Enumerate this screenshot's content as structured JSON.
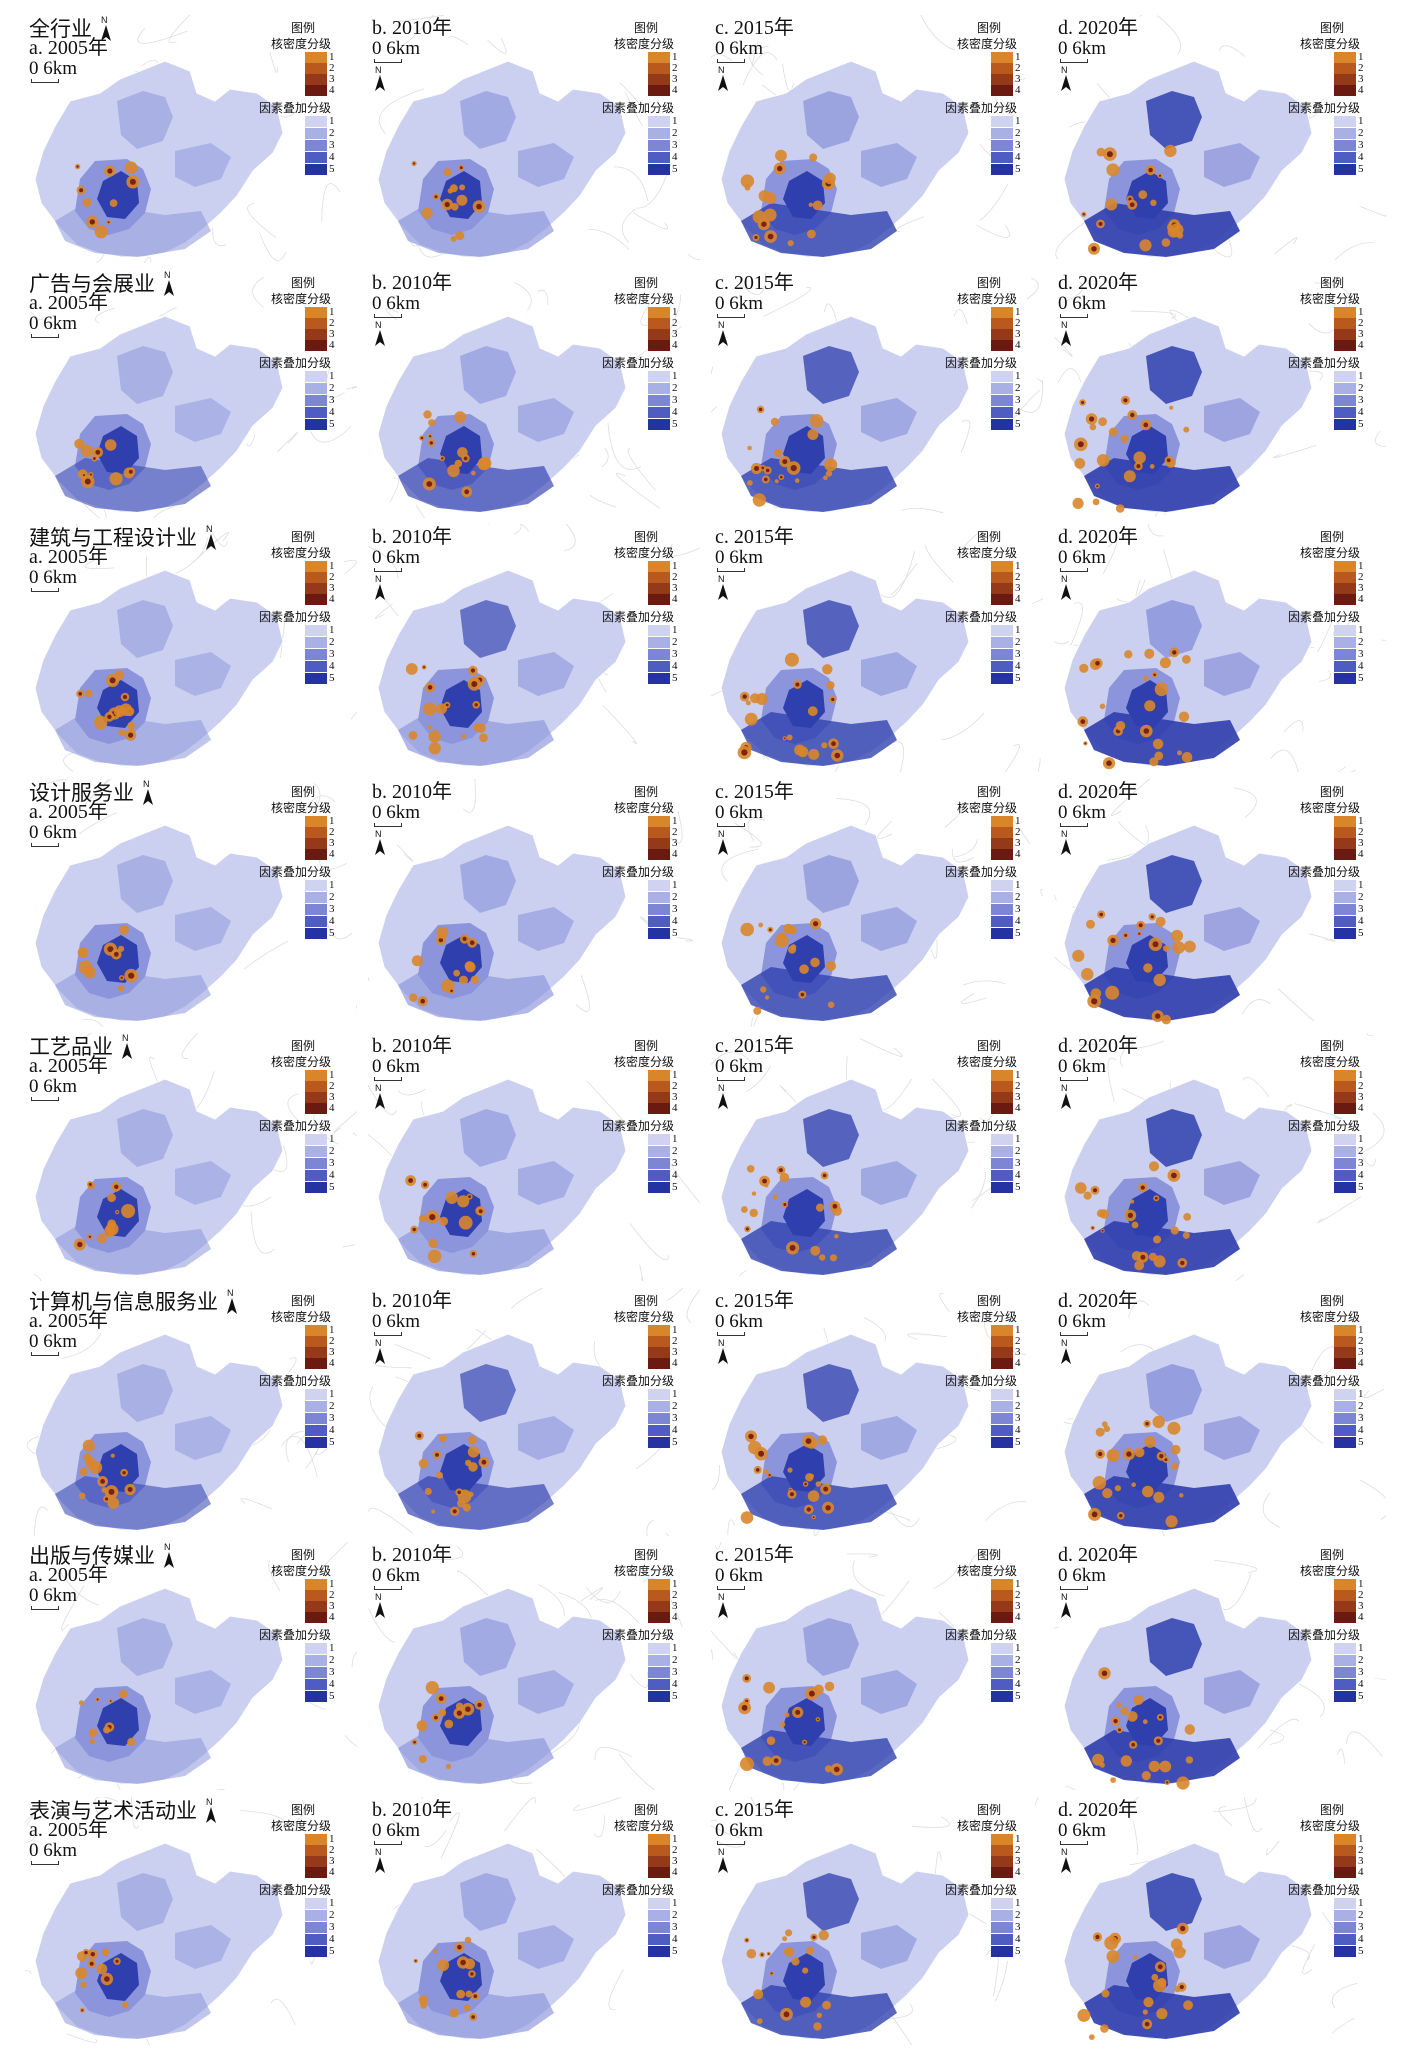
{
  "rows": [
    {
      "name": "全行业"
    },
    {
      "name": "广告与会展业"
    },
    {
      "name": "建筑与工程设计业"
    },
    {
      "name": "设计服务业"
    },
    {
      "name": "工艺品业"
    },
    {
      "name": "计算机与信息服务业"
    },
    {
      "name": "出版与传媒业"
    },
    {
      "name": "表演与艺术活动业"
    }
  ],
  "columns": [
    {
      "label": "a. 2005年",
      "heat": 1
    },
    {
      "label": "b. 2010年",
      "heat": 2
    },
    {
      "label": "c. 2015年",
      "heat": 3
    },
    {
      "label": "d. 2020年",
      "heat": 4
    }
  ],
  "scale_label": "0   6km",
  "north_label": "N",
  "legend": {
    "title": "图例",
    "kernel_title": "核密度分级",
    "kernel_classes": [
      "1",
      "2",
      "3",
      "4"
    ],
    "kernel_colors": [
      "#d9862b",
      "#b9591d",
      "#94391a",
      "#6a1a10"
    ],
    "overlay_title": "因素叠加分级",
    "overlay_classes": [
      "1",
      "2",
      "3",
      "4",
      "5"
    ],
    "overlay_colors": [
      "#cfd3f0",
      "#a9b0e4",
      "#7c86d4",
      "#4f5dc3",
      "#2533a2"
    ]
  },
  "colors": {
    "base_region": "#cbd0f0",
    "mid_region": "#8c95db",
    "deep_region": "#2f3fae",
    "hotspot": "#d9862b",
    "hotspot_core": "#7a2312",
    "background_lines": "#dddddd"
  }
}
